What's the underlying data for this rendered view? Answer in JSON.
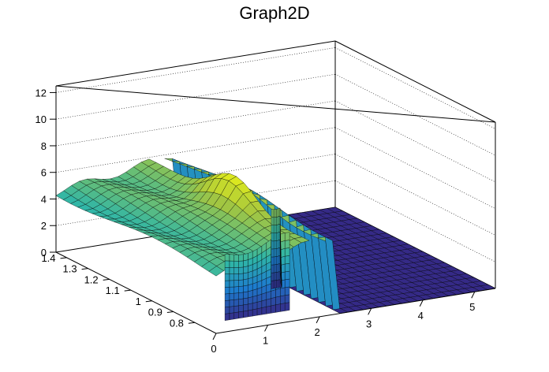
{
  "chart_data": {
    "type": "surface",
    "title": "Graph2D",
    "palette": "kBird",
    "colors": {
      "low": "#352a87",
      "mid1": "#1d7bcf",
      "mid2": "#2fb6a8",
      "mid3": "#a5c63f",
      "high": "#f9fb0e",
      "mesh": "#000000",
      "grid": "#000000"
    },
    "x_axis": {
      "range": [
        0,
        5.4
      ],
      "ticks": [
        0,
        1,
        2,
        3,
        4,
        5
      ],
      "tick_labels": [
        "0",
        "1",
        "2",
        "3",
        "4",
        "5"
      ]
    },
    "y_axis": {
      "range": [
        0.7,
        1.45
      ],
      "ticks": [
        0.8,
        0.9,
        1.0,
        1.1,
        1.2,
        1.3,
        1.4
      ],
      "tick_labels": [
        "0.8",
        "0.9",
        "1",
        "1.1",
        "1.2",
        "1.3",
        "1.4"
      ]
    },
    "z_axis": {
      "range": [
        0,
        12.5
      ],
      "ticks": [
        0,
        2,
        4,
        6,
        8,
        10,
        12
      ],
      "tick_labels": [
        "0",
        "2",
        "4",
        "6",
        "8",
        "10",
        "12"
      ]
    },
    "grid": true,
    "surface": {
      "description_points": [
        {
          "x": 0.0,
          "y": 1.4,
          "z": 4.6
        },
        {
          "x": 0.3,
          "y": 1.1,
          "z": 5.1
        },
        {
          "x": 0.6,
          "y": 0.9,
          "z": 5.3
        },
        {
          "x": 1.0,
          "y": 0.8,
          "z": 5.6
        },
        {
          "x": 1.4,
          "y": 0.9,
          "z": 6.2
        },
        {
          "x": 1.7,
          "y": 1.0,
          "z": 7.8
        },
        {
          "x": 2.0,
          "y": 1.05,
          "z": 6.4
        },
        {
          "x": 2.3,
          "y": 1.1,
          "z": 5.2
        }
      ],
      "zero_region_x": [
        2.3,
        5.4
      ],
      "gap_x": [
        1.75,
        2.1
      ]
    }
  }
}
